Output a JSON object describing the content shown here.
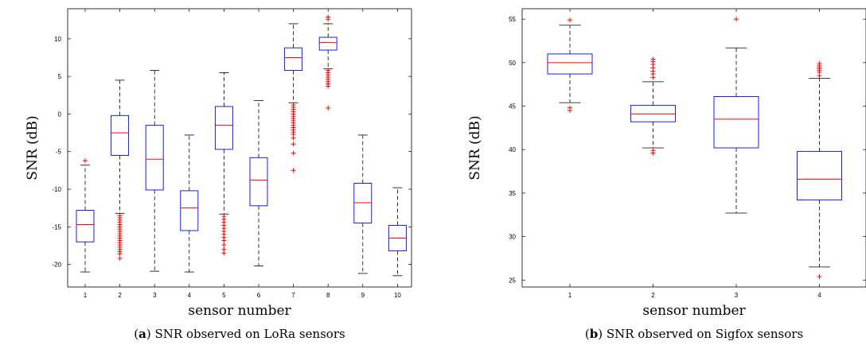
{
  "chart_data": [
    {
      "type": "box",
      "caption_prefix": "(",
      "caption_letter": "a",
      "caption_suffix": ")",
      "caption_text": "SNR observed on LoRa sensors",
      "xlabel": "sensor number",
      "ylabel": "SNR (dB)",
      "ylim": [
        -23,
        14
      ],
      "yticks": [
        10,
        5,
        0,
        -5,
        -10,
        -15,
        -20
      ],
      "grid": false,
      "categories": [
        "1",
        "2",
        "3",
        "4",
        "5",
        "6",
        "7",
        "8",
        "9",
        "10"
      ],
      "boxes": [
        {
          "whisker_low": -21,
          "q1": -17,
          "median": -14.7,
          "q3": -12.8,
          "whisker_high": -6.8,
          "outliers": [
            -6.2
          ]
        },
        {
          "whisker_low": -13.2,
          "q1": -5.5,
          "median": -2.5,
          "q3": -0.2,
          "whisker_high": 4.5,
          "outliers": [
            -13.5,
            -13.8,
            -14.1,
            -14.4,
            -14.7,
            -15,
            -15.3,
            -15.6,
            -15.9,
            -16.2,
            -16.5,
            -16.8,
            -17.1,
            -17.4,
            -17.7,
            -18,
            -18.3,
            -18.6,
            -19.2
          ]
        },
        {
          "whisker_low": -20.9,
          "q1": -10.1,
          "median": -6,
          "q3": -1.5,
          "whisker_high": 5.8,
          "outliers": []
        },
        {
          "whisker_low": -21,
          "q1": -15.5,
          "median": -12.5,
          "q3": -10.2,
          "whisker_high": -2.8,
          "outliers": []
        },
        {
          "whisker_low": -13.3,
          "q1": -4.7,
          "median": -1.5,
          "q3": 1,
          "whisker_high": 5.5,
          "outliers": [
            -13.6,
            -14,
            -14.4,
            -14.8,
            -15.2,
            -15.6,
            -16,
            -16.4,
            -16.8,
            -17.4,
            -18,
            -18.5
          ]
        },
        {
          "whisker_low": -20.2,
          "q1": -12.2,
          "median": -8.8,
          "q3": -5.8,
          "whisker_high": 1.8,
          "outliers": []
        },
        {
          "whisker_low": 1.5,
          "q1": 5.8,
          "median": 7.5,
          "q3": 8.8,
          "whisker_high": 12,
          "outliers": [
            1.2,
            0.9,
            0.6,
            0.3,
            0,
            -0.3,
            -0.6,
            -0.9,
            -1.2,
            -1.5,
            -1.8,
            -2.1,
            -2.4,
            -2.7,
            -3.2,
            -4,
            -5.2,
            -7.5
          ]
        },
        {
          "whisker_low": 6,
          "q1": 8.5,
          "median": 9.5,
          "q3": 10.2,
          "whisker_high": 12,
          "outliers": [
            12.6,
            12.9,
            5.8,
            5.5,
            5.2,
            4.9,
            4.6,
            4.3,
            4,
            3.7,
            0.8
          ]
        },
        {
          "whisker_low": -21.2,
          "q1": -14.5,
          "median": -11.8,
          "q3": -9.2,
          "whisker_high": -2.8,
          "outliers": []
        },
        {
          "whisker_low": -21.5,
          "q1": -18.2,
          "median": -16.5,
          "q3": -14.8,
          "whisker_high": -9.8,
          "outliers": []
        }
      ],
      "colors": {
        "box": "#0000ff",
        "median": "#ff0000",
        "outlier": "#ff0000",
        "whisker": "#000000"
      }
    },
    {
      "type": "box",
      "caption_prefix": "(",
      "caption_letter": "b",
      "caption_suffix": ")",
      "caption_text": "SNR observed on Sigfox sensors",
      "xlabel": "sensor number",
      "ylabel": "SNR (dB)",
      "ylim": [
        24.2,
        56.2
      ],
      "yticks": [
        55,
        50,
        45,
        40,
        35,
        30,
        25
      ],
      "grid": false,
      "categories": [
        "1",
        "2",
        "3",
        "4"
      ],
      "boxes": [
        {
          "whisker_low": 45.4,
          "q1": 48.7,
          "median": 50,
          "q3": 51,
          "whisker_high": 54.3,
          "outliers": [
            54.9,
            44.8,
            44.5
          ]
        },
        {
          "whisker_low": 40.2,
          "q1": 43.2,
          "median": 44.1,
          "q3": 45.1,
          "whisker_high": 47.8,
          "outliers": [
            50.4,
            50.1,
            49.8,
            49.4,
            49,
            48.7,
            48.3,
            39.9,
            39.6
          ]
        },
        {
          "whisker_low": 32.7,
          "q1": 40.2,
          "median": 43.5,
          "q3": 46.1,
          "whisker_high": 51.7,
          "outliers": [
            55
          ]
        },
        {
          "whisker_low": 26.5,
          "q1": 34.2,
          "median": 36.6,
          "q3": 39.8,
          "whisker_high": 48.2,
          "outliers": [
            49.9,
            49.7,
            49.5,
            49.3,
            49.1,
            48.9,
            48.5,
            25.4
          ]
        }
      ],
      "colors": {
        "box": "#0000ff",
        "median": "#ff0000",
        "outlier": "#ff0000",
        "whisker": "#000000"
      }
    }
  ]
}
